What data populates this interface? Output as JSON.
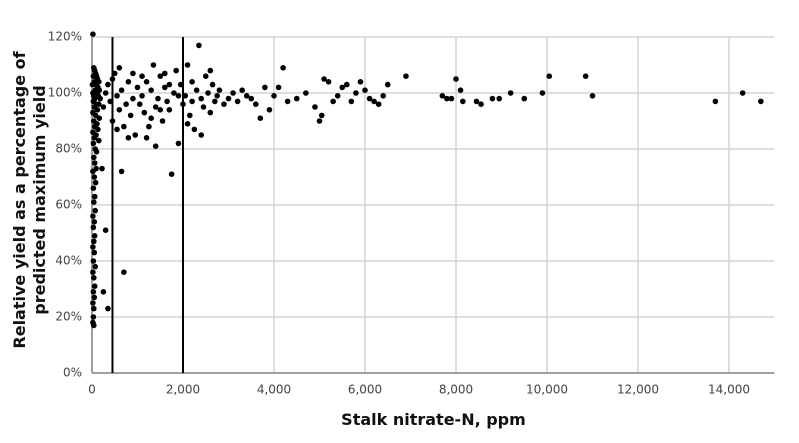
{
  "chart_data": {
    "type": "scatter",
    "xlabel": "Stalk nitrate-N, ppm",
    "ylabel": "Relative yield as a percentage of predicted maximum yield",
    "xlim": [
      0,
      15000
    ],
    "ylim": [
      0,
      120
    ],
    "xticks": [
      0,
      {
        "value": 2000,
        "label": "2,000"
      },
      {
        "value": 4000,
        "label": "4,000"
      },
      {
        "value": 6000,
        "label": "6,000"
      },
      {
        "value": 8000,
        "label": "8,000"
      },
      {
        "value": 10000,
        "label": "10,000"
      },
      {
        "value": 12000,
        "label": "12,000"
      },
      {
        "value": 14000,
        "label": "14,000"
      }
    ],
    "yticks": [
      {
        "value": 0,
        "label": "0%"
      },
      {
        "value": 20,
        "label": "20%"
      },
      {
        "value": 40,
        "label": "40%"
      },
      {
        "value": 60,
        "label": "60%"
      },
      {
        "value": 80,
        "label": "80%"
      },
      {
        "value": 100,
        "label": "100%"
      },
      {
        "value": 120,
        "label": "120%"
      }
    ],
    "grid": true,
    "color": "#000000",
    "vlines": [
      450,
      2000
    ],
    "x": [
      20,
      40,
      60,
      80,
      30,
      100,
      120,
      50,
      150,
      10,
      90,
      130,
      70,
      160,
      20,
      110,
      40,
      140,
      60,
      180,
      30,
      100,
      150,
      50,
      120,
      20,
      80,
      160,
      40,
      110,
      60,
      130,
      20,
      90,
      50,
      150,
      30,
      70,
      100,
      40,
      60,
      90,
      20,
      50,
      80,
      30,
      60,
      40,
      70,
      20,
      50,
      30,
      60,
      40,
      20,
      50,
      30,
      70,
      20,
      40,
      60,
      30,
      50,
      20,
      40,
      30,
      20,
      40,
      220,
      250,
      300,
      350,
      700,
      650,
      250,
      300,
      350,
      400,
      450,
      500,
      550,
      600,
      650,
      700,
      750,
      800,
      850,
      900,
      950,
      1000,
      450,
      600,
      550,
      800,
      900,
      1050,
      1100,
      1150,
      1200,
      1250,
      1300,
      1350,
      1400,
      1450,
      1500,
      1550,
      1600,
      1650,
      1700,
      1750,
      1800,
      1850,
      1900,
      1950,
      2000,
      2050,
      2100,
      2150,
      2200,
      2250,
      2300,
      2350,
      2400,
      2450,
      2500,
      2550,
      2600,
      2650,
      2700,
      2750,
      2800,
      2900,
      3000,
      1200,
      1400,
      1600,
      2100,
      2400,
      1300,
      1700,
      2200,
      2600,
      1100,
      1500,
      1900,
      3100,
      3200,
      3300,
      3400,
      3500,
      3600,
      3700,
      3800,
      3900,
      4000,
      4100,
      4200,
      4300,
      4500,
      4700,
      4900,
      5000,
      5050,
      5100,
      5200,
      5300,
      5400,
      5500,
      5600,
      5700,
      5800,
      5900,
      6000,
      6100,
      6200,
      6300,
      6400,
      6500,
      6900,
      7700,
      7800,
      7900,
      8000,
      8100,
      8150,
      8450,
      8550,
      8800,
      8950,
      9200,
      9500,
      9900,
      10050,
      10850,
      11000,
      13700,
      14300,
      14700
    ],
    "values": [
      121,
      109,
      108,
      107,
      106,
      106,
      105,
      104,
      104,
      103,
      103,
      102,
      101,
      101,
      100,
      100,
      99,
      99,
      98,
      98,
      97,
      96,
      96,
      95,
      94,
      93,
      92,
      91,
      90,
      89,
      88,
      87,
      86,
      85,
      84,
      83,
      82,
      80,
      79,
      77,
      75,
      73,
      72,
      70,
      68,
      66,
      63,
      61,
      58,
      56,
      54,
      52,
      49,
      47,
      45,
      43,
      40,
      38,
      36,
      34,
      31,
      29,
      27,
      25,
      23,
      20,
      18,
      17,
      73,
      29,
      51,
      23,
      36,
      72,
      95,
      100,
      103,
      97,
      90,
      107,
      99,
      94,
      101,
      88,
      96,
      104,
      92,
      98,
      85,
      102,
      105,
      109,
      87,
      84,
      107,
      96,
      99,
      93,
      104,
      88,
      101,
      110,
      95,
      98,
      106,
      90,
      102,
      97,
      94,
      71,
      100,
      108,
      82,
      103,
      96,
      99,
      110,
      92,
      104,
      87,
      101,
      117,
      98,
      95,
      106,
      100,
      93,
      103,
      97,
      99,
      101,
      96,
      98,
      84,
      81,
      107,
      89,
      85,
      91,
      103,
      97,
      108,
      106,
      94,
      99,
      100,
      97,
      101,
      99,
      98,
      96,
      91,
      102,
      94,
      99,
      102,
      109,
      97,
      98,
      100,
      95,
      90,
      92,
      105,
      104,
      97,
      99,
      102,
      103,
      97,
      100,
      104,
      101,
      98,
      97,
      96,
      99,
      103,
      106,
      99,
      98,
      98,
      105,
      101,
      97,
      97,
      96,
      98,
      98,
      100,
      98,
      100,
      106,
      106,
      99,
      97,
      100,
      97
    ]
  }
}
